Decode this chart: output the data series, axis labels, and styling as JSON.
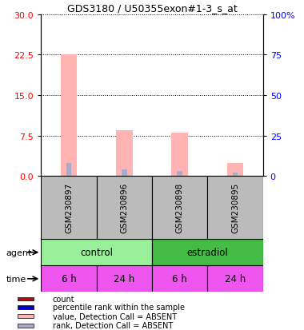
{
  "title": "GDS3180 / U50355exon#1-3_s_at",
  "samples": [
    "GSM230897",
    "GSM230896",
    "GSM230898",
    "GSM230895"
  ],
  "time_labels": [
    "6 h",
    "24 h",
    "6 h",
    "24 h"
  ],
  "left_ylim": [
    0,
    30
  ],
  "right_ylim": [
    0,
    100
  ],
  "left_yticks": [
    0,
    7.5,
    15,
    22.5,
    30
  ],
  "right_yticks": [
    0,
    25,
    50,
    75,
    100
  ],
  "right_ytick_labels": [
    "0",
    "25",
    "50",
    "75",
    "100%"
  ],
  "pink_values": [
    22.5,
    8.5,
    8.0,
    2.5
  ],
  "blue_values": [
    2.5,
    1.2,
    1.0,
    0.6
  ],
  "pink_bar_width": 0.3,
  "blue_bar_width": 0.1,
  "pink_color": "#FFB3B3",
  "blue_color": "#AAAACC",
  "gray_color": "#BBBBBB",
  "agent_light_green": "#99EE99",
  "agent_dark_green": "#44BB44",
  "time_color": "#EE55EE",
  "legend_items": [
    {
      "label": "count",
      "color": "#CC0000"
    },
    {
      "label": "percentile rank within the sample",
      "color": "#0000CC"
    },
    {
      "label": "value, Detection Call = ABSENT",
      "color": "#FFB3B3"
    },
    {
      "label": "rank, Detection Call = ABSENT",
      "color": "#AAAACC"
    }
  ]
}
